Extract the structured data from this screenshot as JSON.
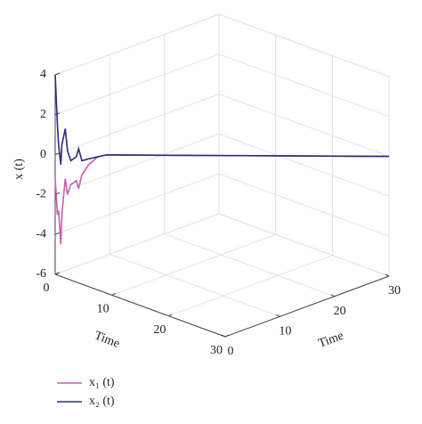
{
  "chart_data": {
    "type": "line3d",
    "zlabel": "x (t)",
    "xlabel": "Time",
    "ylabel": "Time",
    "x": [
      0,
      0.2,
      0.3,
      0.5,
      0.6,
      0.9,
      1.1,
      1.4,
      1.9,
      2.1,
      2.4,
      3,
      3.8,
      4.6,
      10,
      20,
      30
    ],
    "series": [
      {
        "name": "x₁ (t)",
        "color": "#c95cb0",
        "values": [
          -1.2,
          -3,
          -2.8,
          -4.5,
          -3,
          -1.2,
          -2,
          -1.5,
          -1.3,
          -1.7,
          -1,
          -0.5,
          -0.1,
          0,
          0,
          0,
          0
        ]
      },
      {
        "name": "x₂ (t)",
        "color": "#2c2a7c",
        "values": [
          4,
          1.5,
          0.5,
          -0.5,
          0.5,
          1.3,
          0.2,
          -0.3,
          -0.1,
          0.3,
          -0.3,
          -0.2,
          -0.1,
          0,
          0,
          0,
          0
        ]
      }
    ],
    "xlim": [
      0,
      30
    ],
    "xticks": [
      0,
      10,
      20,
      30
    ],
    "ylim": [
      0,
      30
    ],
    "yticks": [
      0,
      10,
      20,
      30
    ],
    "zlim": [
      -6,
      4
    ],
    "zticks": [
      -6,
      -4,
      -2,
      0,
      2,
      4
    ],
    "grid": true,
    "legend": "bottom-left"
  }
}
